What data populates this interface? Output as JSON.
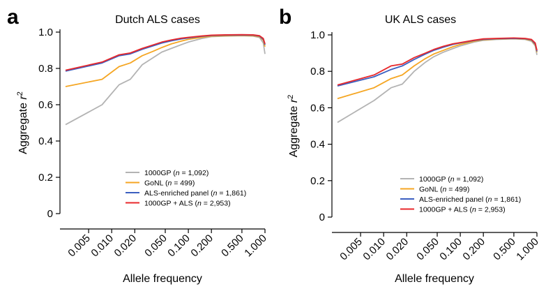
{
  "chart_data": [
    {
      "type": "line",
      "panel_letter": "a",
      "title": "Dutch ALS cases",
      "xlabel": "Allele frequency",
      "ylabel_prefix": "Aggregate ",
      "ylabel_var": "r",
      "ylabel_sup": "2",
      "x_scale": "log",
      "x_ticks": [
        "0.005",
        "0.010",
        "0.020",
        "0.050",
        "0.100",
        "0.200",
        "0.500",
        "1.000"
      ],
      "y_ticks": [
        "0",
        "0.2",
        "0.4",
        "0.6",
        "0.8",
        "1.0"
      ],
      "ylim": [
        0,
        1.0
      ],
      "xlim": [
        0.0025,
        1.0
      ],
      "legend_position": "bottom-right",
      "series": [
        {
          "name": "1000GP",
          "n": "1,092",
          "color": "#b3b3b3",
          "x": [
            0.0025,
            0.0075,
            0.0125,
            0.0175,
            0.025,
            0.035,
            0.045,
            0.06,
            0.08,
            0.1,
            0.15,
            0.2,
            0.3,
            0.5,
            0.7,
            0.85,
            0.95,
            1.0
          ],
          "y": [
            0.49,
            0.6,
            0.71,
            0.74,
            0.82,
            0.86,
            0.89,
            0.91,
            0.93,
            0.945,
            0.965,
            0.975,
            0.978,
            0.98,
            0.978,
            0.97,
            0.94,
            0.88
          ]
        },
        {
          "name": "GoNL",
          "n": "499",
          "color": "#f5a623",
          "x": [
            0.0025,
            0.0075,
            0.0125,
            0.0175,
            0.025,
            0.035,
            0.045,
            0.06,
            0.08,
            0.1,
            0.15,
            0.2,
            0.3,
            0.5,
            0.7,
            0.85,
            0.95,
            1.0
          ],
          "y": [
            0.7,
            0.74,
            0.81,
            0.83,
            0.87,
            0.895,
            0.915,
            0.935,
            0.95,
            0.96,
            0.972,
            0.978,
            0.98,
            0.982,
            0.98,
            0.975,
            0.955,
            0.92
          ]
        },
        {
          "name": "ALS-enriched panel",
          "n": "1,861",
          "color": "#3b5fc0",
          "x": [
            0.0025,
            0.0075,
            0.0125,
            0.0175,
            0.025,
            0.035,
            0.045,
            0.06,
            0.08,
            0.1,
            0.15,
            0.2,
            0.3,
            0.5,
            0.7,
            0.85,
            0.95,
            1.0
          ],
          "y": [
            0.785,
            0.83,
            0.87,
            0.88,
            0.905,
            0.925,
            0.94,
            0.952,
            0.962,
            0.968,
            0.977,
            0.981,
            0.983,
            0.984,
            0.983,
            0.978,
            0.96,
            0.93
          ]
        },
        {
          "name": "1000GP + ALS",
          "n": "2,953",
          "color": "#e8282b",
          "x": [
            0.0025,
            0.0075,
            0.0125,
            0.0175,
            0.025,
            0.035,
            0.045,
            0.06,
            0.08,
            0.1,
            0.15,
            0.2,
            0.3,
            0.5,
            0.7,
            0.85,
            0.95,
            1.0
          ],
          "y": [
            0.79,
            0.835,
            0.875,
            0.885,
            0.91,
            0.93,
            0.945,
            0.957,
            0.966,
            0.971,
            0.979,
            0.983,
            0.985,
            0.986,
            0.985,
            0.98,
            0.965,
            0.935
          ]
        }
      ]
    },
    {
      "type": "line",
      "panel_letter": "b",
      "title": "UK ALS cases",
      "xlabel": "Allele frequency",
      "ylabel_prefix": "Aggregate ",
      "ylabel_var": "r",
      "ylabel_sup": "2",
      "x_scale": "log",
      "x_ticks": [
        "0.005",
        "0.010",
        "0.020",
        "0.050",
        "0.100",
        "0.200",
        "0.500",
        "1.000"
      ],
      "y_ticks": [
        "0",
        "0.2",
        "0.4",
        "0.6",
        "0.8",
        "1.0"
      ],
      "ylim": [
        0,
        1.0
      ],
      "xlim": [
        0.0025,
        1.0
      ],
      "legend_position": "bottom-right",
      "series": [
        {
          "name": "1000GP",
          "n": "1,092",
          "color": "#b3b3b3",
          "x": [
            0.0025,
            0.0075,
            0.0125,
            0.0175,
            0.025,
            0.035,
            0.045,
            0.06,
            0.08,
            0.1,
            0.15,
            0.2,
            0.3,
            0.5,
            0.7,
            0.85,
            0.95,
            1.0
          ],
          "y": [
            0.52,
            0.64,
            0.71,
            0.73,
            0.8,
            0.85,
            0.88,
            0.905,
            0.925,
            0.94,
            0.96,
            0.97,
            0.975,
            0.978,
            0.975,
            0.965,
            0.94,
            0.89
          ]
        },
        {
          "name": "GoNL",
          "n": "499",
          "color": "#f5a623",
          "x": [
            0.0025,
            0.0075,
            0.0125,
            0.0175,
            0.025,
            0.035,
            0.045,
            0.06,
            0.08,
            0.1,
            0.15,
            0.2,
            0.3,
            0.5,
            0.7,
            0.85,
            0.95,
            1.0
          ],
          "y": [
            0.65,
            0.71,
            0.76,
            0.78,
            0.83,
            0.87,
            0.895,
            0.915,
            0.935,
            0.948,
            0.965,
            0.973,
            0.977,
            0.98,
            0.977,
            0.97,
            0.945,
            0.905
          ]
        },
        {
          "name": "ALS-enriched panel",
          "n": "1,861",
          "color": "#3b5fc0",
          "x": [
            0.0025,
            0.0075,
            0.0125,
            0.0175,
            0.025,
            0.035,
            0.045,
            0.06,
            0.08,
            0.1,
            0.15,
            0.2,
            0.3,
            0.5,
            0.7,
            0.85,
            0.95,
            1.0
          ],
          "y": [
            0.72,
            0.77,
            0.81,
            0.83,
            0.865,
            0.895,
            0.915,
            0.932,
            0.948,
            0.956,
            0.969,
            0.976,
            0.979,
            0.981,
            0.979,
            0.973,
            0.95,
            0.91
          ]
        },
        {
          "name": "1000GP + ALS",
          "n": "2,953",
          "color": "#e8282b",
          "x": [
            0.0025,
            0.0075,
            0.0125,
            0.0175,
            0.025,
            0.035,
            0.045,
            0.06,
            0.08,
            0.1,
            0.15,
            0.2,
            0.3,
            0.5,
            0.7,
            0.85,
            0.95,
            1.0
          ],
          "y": [
            0.725,
            0.78,
            0.83,
            0.84,
            0.875,
            0.9,
            0.92,
            0.937,
            0.951,
            0.958,
            0.971,
            0.978,
            0.981,
            0.983,
            0.981,
            0.975,
            0.955,
            0.915
          ]
        }
      ]
    }
  ]
}
